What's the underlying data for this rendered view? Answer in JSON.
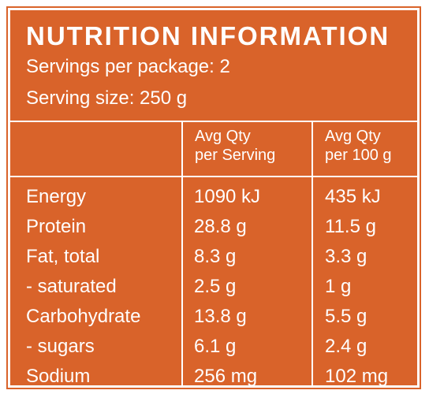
{
  "panel": {
    "title": "NUTRITION INFORMATION",
    "servings_per_package": "Servings per package: 2",
    "serving_size": "Serving size: 250 g"
  },
  "columns": {
    "per_serving_line1": "Avg Qty",
    "per_serving_line2": "per Serving",
    "per_100g_line1": "Avg Qty",
    "per_100g_line2": "per 100 g"
  },
  "rows": [
    {
      "name": "Energy",
      "per_serving": "1090 kJ",
      "per_100g": "435 kJ"
    },
    {
      "name": "Protein",
      "per_serving": "28.8 g",
      "per_100g": "11.5 g"
    },
    {
      "name": "Fat, total",
      "per_serving": "8.3 g",
      "per_100g": "3.3 g"
    },
    {
      "name": "- saturated",
      "per_serving": "2.5 g",
      "per_100g": "1 g"
    },
    {
      "name": "Carbohydrate",
      "per_serving": "13.8 g",
      "per_100g": "5.5 g"
    },
    {
      "name": "- sugars",
      "per_serving": "6.1 g",
      "per_100g": "2.4 g"
    },
    {
      "name": "Sodium",
      "per_serving": "256 mg",
      "per_100g": "102 mg"
    }
  ],
  "colors": {
    "background": "#d9632a",
    "text": "#ffffff"
  }
}
